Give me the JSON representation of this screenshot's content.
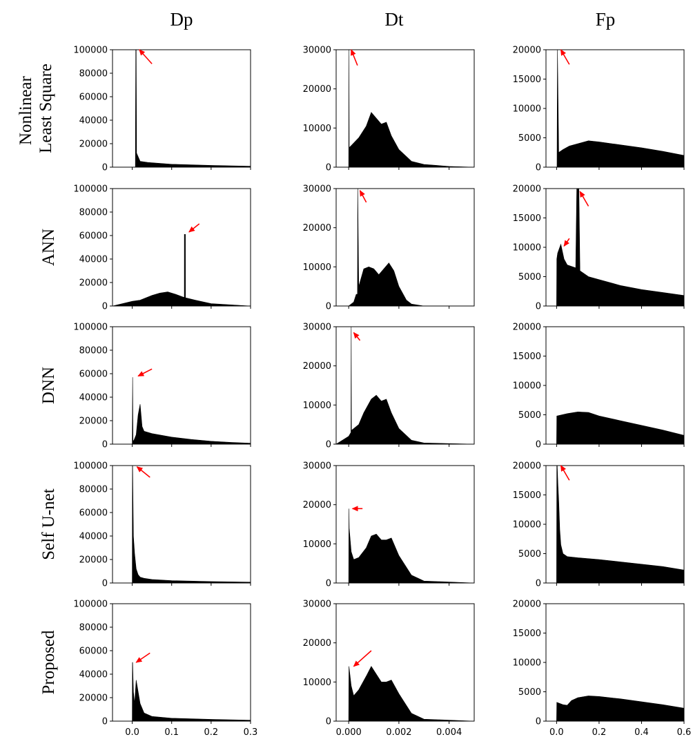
{
  "columns": [
    "Dp",
    "Dt",
    "Fp"
  ],
  "rows": [
    "Nonlinear Least Square",
    "ANN",
    "DNN",
    "Self U-net",
    "Proposed"
  ],
  "row_label_lines": [
    [
      "Nonlinear",
      "Least Square"
    ],
    [
      "ANN"
    ],
    [
      "DNN"
    ],
    [
      "Self U-net"
    ],
    [
      "Proposed"
    ]
  ],
  "colors": {
    "fill": "#000000",
    "arrow": "#ff0000",
    "axis": "#000000"
  },
  "chart_data": [
    {
      "type": "area",
      "row": "Nonlinear Least Square",
      "column": "Dp",
      "x": [
        -0.05,
        0.0,
        0.007,
        0.008,
        0.009,
        0.01,
        0.011,
        0.02,
        0.04,
        0.1,
        0.2,
        0.3
      ],
      "y": [
        0,
        0,
        0,
        0,
        100000,
        100000,
        12000,
        5000,
        4000,
        2500,
        1500,
        800
      ],
      "xlim": [
        -0.05,
        0.3
      ],
      "ylim": [
        0,
        100000
      ],
      "yticks": [
        0,
        20000,
        40000,
        60000,
        80000,
        100000
      ],
      "xticks": [
        0.0,
        0.1,
        0.2,
        0.3
      ],
      "xtick_labels": [
        "0.0",
        "0.1",
        "0.2",
        "0.3"
      ],
      "show_xticks": false,
      "arrows": [
        {
          "from": [
            0.05,
            88000
          ],
          "to": [
            0.018,
            100000
          ]
        }
      ]
    },
    {
      "type": "area",
      "row": "Nonlinear Least Square",
      "column": "Dt",
      "x": [
        -0.0005,
        0.0,
        1e-05,
        2e-05,
        0.0001,
        0.0004,
        0.0007,
        0.0009,
        0.0011,
        0.0013,
        0.0015,
        0.0017,
        0.002,
        0.0025,
        0.003,
        0.004,
        0.005
      ],
      "y": [
        0,
        0,
        30000,
        5000,
        5500,
        7500,
        10500,
        14000,
        12500,
        11000,
        11500,
        8000,
        4500,
        1500,
        700,
        200,
        0
      ],
      "xlim": [
        -0.0005,
        0.005
      ],
      "ylim": [
        0,
        30000
      ],
      "yticks": [
        0,
        10000,
        20000,
        30000
      ],
      "xticks": [
        0.0,
        0.002,
        0.004
      ],
      "xtick_labels": [
        "0.000",
        "0.002",
        "0.004"
      ],
      "show_xticks": false,
      "arrows": [
        {
          "from": [
            0.00035,
            26000
          ],
          "to": [
            0.0001,
            30000
          ]
        }
      ]
    },
    {
      "type": "area",
      "row": "Nonlinear Least Square",
      "column": "Fp",
      "x": [
        -0.05,
        0.0,
        0.002,
        0.004,
        0.01,
        0.03,
        0.06,
        0.1,
        0.15,
        0.2,
        0.3,
        0.4,
        0.5,
        0.6
      ],
      "y": [
        0,
        0,
        0,
        20000,
        2500,
        3000,
        3600,
        4000,
        4500,
        4300,
        3800,
        3300,
        2700,
        2000
      ],
      "xlim": [
        -0.05,
        0.6
      ],
      "ylim": [
        0,
        20000
      ],
      "yticks": [
        0,
        5000,
        10000,
        15000,
        20000
      ],
      "xticks": [
        0.0,
        0.2,
        0.4,
        0.6
      ],
      "xtick_labels": [
        "0.0",
        "0.2",
        "0.4",
        "0.6"
      ],
      "show_xticks": false,
      "arrows": [
        {
          "from": [
            0.06,
            17500
          ],
          "to": [
            0.02,
            20000
          ]
        }
      ]
    },
    {
      "type": "area",
      "row": "ANN",
      "column": "Dp",
      "x": [
        -0.05,
        0.0,
        0.02,
        0.05,
        0.07,
        0.09,
        0.11,
        0.13,
        0.1321,
        0.1322,
        0.1348,
        0.135,
        0.16,
        0.2,
        0.3
      ],
      "y": [
        0,
        4000,
        5000,
        9000,
        11000,
        12000,
        10000,
        7500,
        7500,
        61000,
        61000,
        7000,
        5000,
        2000,
        0
      ],
      "xlim": [
        -0.05,
        0.3
      ],
      "ylim": [
        0,
        100000
      ],
      "yticks": [
        0,
        20000,
        40000,
        60000,
        80000,
        100000
      ],
      "xticks": [
        0.0,
        0.1,
        0.2,
        0.3
      ],
      "xtick_labels": [
        "0.0",
        "0.1",
        "0.2",
        "0.3"
      ],
      "show_xticks": false,
      "arrows": [
        {
          "from": [
            0.17,
            70000
          ],
          "to": [
            0.144,
            63000
          ]
        }
      ]
    },
    {
      "type": "area",
      "row": "ANN",
      "column": "Dt",
      "x": [
        -0.0005,
        0.0,
        0.0002,
        0.0003,
        0.00035,
        0.00036,
        0.0004,
        0.0006,
        0.0008,
        0.001,
        0.0012,
        0.0014,
        0.0016,
        0.0018,
        0.002,
        0.0023,
        0.0025,
        0.003,
        0.005
      ],
      "y": [
        0,
        0,
        1000,
        3000,
        3000,
        30000,
        5000,
        9500,
        10000,
        9500,
        8000,
        9500,
        11000,
        9000,
        5000,
        1500,
        500,
        0,
        0
      ],
      "xlim": [
        -0.0005,
        0.005
      ],
      "ylim": [
        0,
        30000
      ],
      "yticks": [
        0,
        10000,
        20000,
        30000
      ],
      "xticks": [
        0.0,
        0.002,
        0.004
      ],
      "xtick_labels": [
        "0.000",
        "0.002",
        "0.004"
      ],
      "show_xticks": false,
      "arrows": [
        {
          "from": [
            0.0007,
            26500
          ],
          "to": [
            0.00045,
            29500
          ]
        }
      ]
    },
    {
      "type": "area",
      "row": "ANN",
      "column": "Fp",
      "x": [
        -0.05,
        0.0,
        0.001,
        0.005,
        0.02,
        0.035,
        0.05,
        0.09,
        0.095,
        0.1,
        0.105,
        0.11,
        0.15,
        0.2,
        0.3,
        0.4,
        0.5,
        0.6
      ],
      "y": [
        0,
        0,
        8000,
        9000,
        10500,
        8000,
        7000,
        6500,
        20000,
        20000,
        20000,
        6000,
        5000,
        4500,
        3500,
        2800,
        2300,
        1800
      ],
      "xlim": [
        -0.05,
        0.6
      ],
      "ylim": [
        0,
        20000
      ],
      "yticks": [
        0,
        5000,
        10000,
        15000,
        20000
      ],
      "xticks": [
        0.0,
        0.2,
        0.4,
        0.6
      ],
      "xtick_labels": [
        "0.0",
        "0.2",
        "0.4",
        "0.6"
      ],
      "show_xticks": false,
      "arrows": [
        {
          "from": [
            0.15,
            17000
          ],
          "to": [
            0.11,
            19500
          ]
        },
        {
          "from": [
            0.06,
            11500
          ],
          "to": [
            0.035,
            10200
          ]
        }
      ]
    },
    {
      "type": "area",
      "row": "DNN",
      "column": "Dp",
      "x": [
        -0.05,
        0.0,
        0.001,
        0.002,
        0.003,
        0.004,
        0.01,
        0.015,
        0.02,
        0.025,
        0.03,
        0.05,
        0.1,
        0.15,
        0.2,
        0.25,
        0.3
      ],
      "y": [
        0,
        0,
        57000,
        3000,
        3000,
        3000,
        8000,
        25000,
        34000,
        15000,
        11000,
        9000,
        6000,
        4000,
        2500,
        1500,
        800
      ],
      "xlim": [
        -0.05,
        0.3
      ],
      "ylim": [
        0,
        100000
      ],
      "yticks": [
        0,
        20000,
        40000,
        60000,
        80000,
        100000
      ],
      "xticks": [
        0.0,
        0.1,
        0.2,
        0.3
      ],
      "xtick_labels": [
        "0.0",
        "0.1",
        "0.2",
        "0.3"
      ],
      "show_xticks": false,
      "arrows": [
        {
          "from": [
            0.05,
            64000
          ],
          "to": [
            0.015,
            58000
          ]
        }
      ]
    },
    {
      "type": "area",
      "row": "DNN",
      "column": "Dt",
      "x": [
        -0.0005,
        0.0,
        9e-05,
        0.0001,
        0.00011,
        0.0004,
        0.0006,
        0.0009,
        0.0011,
        0.0013,
        0.0015,
        0.0017,
        0.002,
        0.0025,
        0.003,
        0.005
      ],
      "y": [
        0,
        2000,
        3000,
        30000,
        3500,
        5000,
        8000,
        11500,
        12500,
        11000,
        11500,
        8000,
        4000,
        1000,
        300,
        0
      ],
      "xlim": [
        -0.0005,
        0.005
      ],
      "ylim": [
        0,
        30000
      ],
      "yticks": [
        0,
        10000,
        20000,
        30000
      ],
      "xticks": [
        0.0,
        0.002,
        0.004
      ],
      "xtick_labels": [
        "0.000",
        "0.002",
        "0.004"
      ],
      "show_xticks": false,
      "arrows": [
        {
          "from": [
            0.00045,
            26500
          ],
          "to": [
            0.0002,
            28500
          ]
        }
      ]
    },
    {
      "type": "area",
      "row": "DNN",
      "column": "Fp",
      "x": [
        -0.05,
        0.0,
        0.001,
        0.05,
        0.1,
        0.15,
        0.2,
        0.3,
        0.4,
        0.5,
        0.6
      ],
      "y": [
        0,
        0,
        4800,
        5200,
        5500,
        5400,
        4800,
        4000,
        3200,
        2400,
        1500
      ],
      "xlim": [
        -0.05,
        0.6
      ],
      "ylim": [
        0,
        20000
      ],
      "yticks": [
        0,
        5000,
        10000,
        15000,
        20000
      ],
      "xticks": [
        0.0,
        0.2,
        0.4,
        0.6
      ],
      "xtick_labels": [
        "0.0",
        "0.2",
        "0.4",
        "0.6"
      ],
      "show_xticks": false,
      "arrows": []
    },
    {
      "type": "area",
      "row": "Self U-net",
      "column": "Dp",
      "x": [
        -0.05,
        0.0,
        0.0005,
        0.001,
        0.003,
        0.006,
        0.01,
        0.015,
        0.02,
        0.03,
        0.05,
        0.1,
        0.2,
        0.3
      ],
      "y": [
        0,
        0,
        100000,
        100000,
        40000,
        25000,
        12000,
        7000,
        5000,
        4000,
        3000,
        2000,
        1200,
        700
      ],
      "xlim": [
        -0.05,
        0.3
      ],
      "ylim": [
        0,
        100000
      ],
      "yticks": [
        0,
        20000,
        40000,
        60000,
        80000,
        100000
      ],
      "xticks": [
        0.0,
        0.1,
        0.2,
        0.3
      ],
      "xtick_labels": [
        "0.0",
        "0.1",
        "0.2",
        "0.3"
      ],
      "show_xticks": false,
      "arrows": [
        {
          "from": [
            0.045,
            90000
          ],
          "to": [
            0.012,
            99000
          ]
        }
      ]
    },
    {
      "type": "area",
      "row": "Self U-net",
      "column": "Dt",
      "x": [
        -0.0005,
        0.0,
        1e-05,
        2e-05,
        0.0001,
        0.0002,
        0.0004,
        0.0007,
        0.0009,
        0.0011,
        0.0013,
        0.0015,
        0.0017,
        0.002,
        0.0025,
        0.003,
        0.005
      ],
      "y": [
        0,
        0,
        19000,
        14000,
        8000,
        6000,
        6500,
        9000,
        12000,
        12500,
        11000,
        11000,
        11500,
        7000,
        2000,
        500,
        0
      ],
      "xlim": [
        -0.0005,
        0.005
      ],
      "ylim": [
        0,
        30000
      ],
      "yticks": [
        0,
        10000,
        20000,
        30000
      ],
      "xticks": [
        0.0,
        0.002,
        0.004
      ],
      "xtick_labels": [
        "0.000",
        "0.002",
        "0.004"
      ],
      "show_xticks": false,
      "arrows": [
        {
          "from": [
            0.00055,
            19000
          ],
          "to": [
            0.00015,
            19000
          ]
        }
      ]
    },
    {
      "type": "area",
      "row": "Self U-net",
      "column": "Fp",
      "x": [
        -0.05,
        0.0,
        0.001,
        0.003,
        0.006,
        0.01,
        0.015,
        0.02,
        0.03,
        0.05,
        0.1,
        0.2,
        0.3,
        0.4,
        0.5,
        0.6
      ],
      "y": [
        0,
        0,
        20000,
        20000,
        17000,
        14000,
        9000,
        6500,
        5000,
        4500,
        4300,
        4000,
        3600,
        3200,
        2800,
        2200
      ],
      "xlim": [
        -0.05,
        0.6
      ],
      "ylim": [
        0,
        20000
      ],
      "yticks": [
        0,
        5000,
        10000,
        15000,
        20000
      ],
      "xticks": [
        0.0,
        0.2,
        0.4,
        0.6
      ],
      "xtick_labels": [
        "0.0",
        "0.2",
        "0.4",
        "0.6"
      ],
      "show_xticks": false,
      "arrows": [
        {
          "from": [
            0.06,
            17500
          ],
          "to": [
            0.02,
            20000
          ]
        }
      ]
    },
    {
      "type": "area",
      "row": "Proposed",
      "column": "Dp",
      "x": [
        -0.05,
        0.0,
        0.0005,
        0.001,
        0.003,
        0.006,
        0.01,
        0.015,
        0.02,
        0.03,
        0.05,
        0.1,
        0.2,
        0.3
      ],
      "y": [
        0,
        0,
        50000,
        50000,
        25000,
        15000,
        35000,
        25000,
        15000,
        7000,
        4000,
        2500,
        1500,
        800
      ],
      "xlim": [
        -0.05,
        0.3
      ],
      "ylim": [
        0,
        100000
      ],
      "yticks": [
        0,
        20000,
        40000,
        60000,
        80000,
        100000
      ],
      "xticks": [
        0.0,
        0.1,
        0.2,
        0.3
      ],
      "xtick_labels": [
        "0.0",
        "0.1",
        "0.2",
        "0.3"
      ],
      "show_xticks": true,
      "arrows": [
        {
          "from": [
            0.045,
            58000
          ],
          "to": [
            0.01,
            50000
          ]
        }
      ]
    },
    {
      "type": "area",
      "row": "Proposed",
      "column": "Dt",
      "x": [
        -0.0005,
        0.0,
        1e-05,
        0.0001,
        0.0002,
        0.0004,
        0.0007,
        0.0009,
        0.0011,
        0.0013,
        0.0015,
        0.0017,
        0.002,
        0.0025,
        0.003,
        0.005
      ],
      "y": [
        0,
        0,
        14000,
        9000,
        6500,
        8000,
        11500,
        14000,
        12000,
        10000,
        10000,
        10500,
        7000,
        2000,
        500,
        0
      ],
      "xlim": [
        -0.0005,
        0.005
      ],
      "ylim": [
        0,
        30000
      ],
      "yticks": [
        0,
        10000,
        20000,
        30000
      ],
      "xticks": [
        0.0,
        0.002,
        0.004
      ],
      "xtick_labels": [
        "0.000",
        "0.002",
        "0.004"
      ],
      "show_xticks": true,
      "arrows": [
        {
          "from": [
            0.0009,
            18000
          ],
          "to": [
            0.0002,
            14000
          ]
        }
      ]
    },
    {
      "type": "area",
      "row": "Proposed",
      "column": "Fp",
      "x": [
        -0.05,
        0.0,
        0.001,
        0.03,
        0.05,
        0.07,
        0.1,
        0.15,
        0.2,
        0.3,
        0.4,
        0.5,
        0.6
      ],
      "y": [
        0,
        0,
        3200,
        2800,
        2700,
        3500,
        4000,
        4300,
        4200,
        3800,
        3300,
        2800,
        2200
      ],
      "xlim": [
        -0.05,
        0.6
      ],
      "ylim": [
        0,
        20000
      ],
      "yticks": [
        0,
        5000,
        10000,
        15000,
        20000
      ],
      "xticks": [
        0.0,
        0.2,
        0.4,
        0.6
      ],
      "xtick_labels": [
        "0.0",
        "0.2",
        "0.4",
        "0.6"
      ],
      "show_xticks": true,
      "arrows": []
    }
  ]
}
